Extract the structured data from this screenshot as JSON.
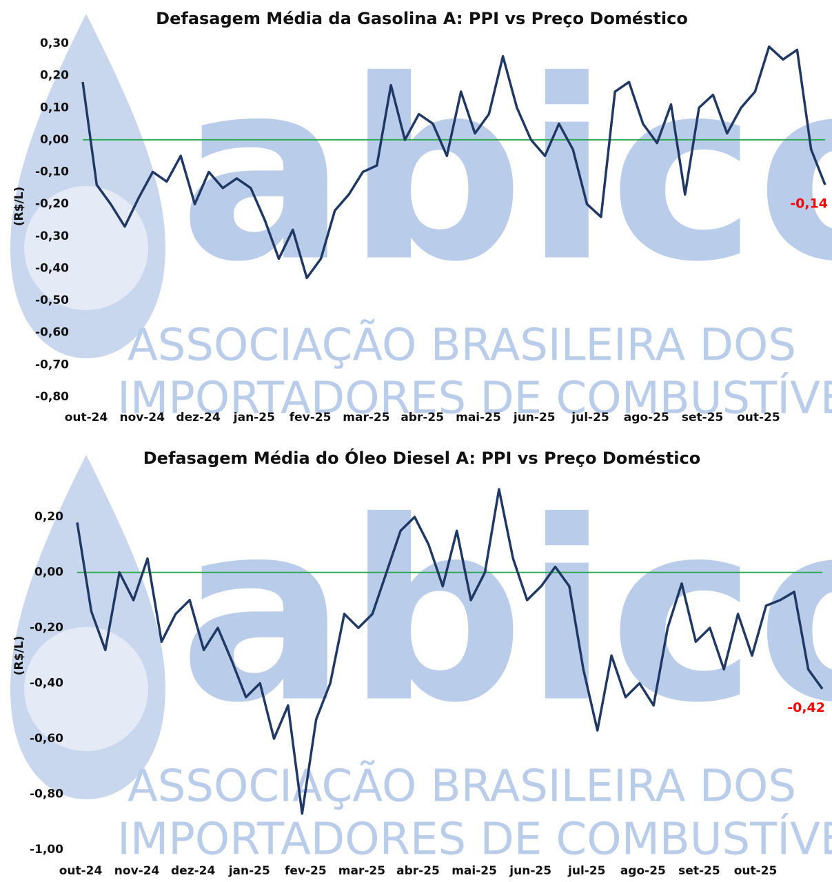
{
  "watermark": {
    "logo": "abicom",
    "line1": "ASSOCIAÇÃO BRASILEIRA DOS",
    "line2": "IMPORTADORES DE COMBUSTÍVEIS"
  },
  "chart_data": [
    {
      "type": "line",
      "title": "Defasagem Média da Gasolina A: PPI vs Preço Doméstico",
      "y_label": "(R$/L)",
      "categories": [
        "out-24",
        null,
        null,
        null,
        "nov-24",
        null,
        null,
        null,
        "dez-24",
        null,
        null,
        null,
        "jan-25",
        null,
        null,
        null,
        "fev-25",
        null,
        null,
        null,
        "mar-25",
        null,
        null,
        null,
        "abr-25",
        null,
        null,
        null,
        "mai-25",
        null,
        null,
        null,
        "jun-25",
        null,
        null,
        null,
        "jul-25",
        null,
        null,
        null,
        "ago-25",
        null,
        null,
        null,
        "set-25",
        null,
        null,
        null,
        "out-25",
        null,
        null,
        null,
        null,
        null
      ],
      "series": [
        {
          "name": "Defasagem",
          "color": "#1f3864",
          "values": [
            0.18,
            -0.14,
            -0.2,
            -0.27,
            -0.18,
            -0.1,
            -0.13,
            -0.05,
            -0.2,
            -0.1,
            -0.15,
            -0.12,
            -0.15,
            -0.25,
            -0.37,
            -0.28,
            -0.43,
            -0.37,
            -0.22,
            -0.17,
            -0.1,
            -0.08,
            0.17,
            0.0,
            0.08,
            0.05,
            -0.05,
            0.15,
            0.02,
            0.08,
            0.26,
            0.1,
            0.0,
            -0.05,
            0.05,
            -0.03,
            -0.2,
            -0.24,
            0.15,
            0.18,
            0.05,
            -0.01,
            0.11,
            -0.17,
            0.1,
            0.14,
            0.02,
            0.1,
            0.15,
            0.29,
            0.25,
            0.28,
            -0.03,
            -0.14
          ],
          "value_labels": [
            null,
            null,
            null,
            null,
            null,
            null,
            null,
            null,
            null,
            null,
            null,
            null,
            null,
            null,
            null,
            null,
            null,
            null,
            null,
            null,
            null,
            null,
            null,
            null,
            null,
            null,
            null,
            null,
            null,
            null,
            null,
            null,
            null,
            null,
            null,
            null,
            null,
            null,
            null,
            null,
            null,
            null,
            null,
            null,
            null,
            null,
            null,
            null,
            null,
            null,
            null,
            null,
            null,
            "-0,14"
          ]
        }
      ],
      "value_label_color": "#ff0000",
      "zero_line_color": "#2eaa57",
      "ylim": [
        -0.8,
        0.3
      ],
      "yticks": [
        {
          "value": -0.8,
          "label": "-0,80"
        },
        {
          "value": -0.7,
          "label": "-0,70"
        },
        {
          "value": -0.6,
          "label": "-0,60"
        },
        {
          "value": -0.5,
          "label": "-0,50"
        },
        {
          "value": -0.4,
          "label": "-0,40"
        },
        {
          "value": -0.3,
          "label": "-0,30"
        },
        {
          "value": -0.2,
          "label": "-0,20"
        },
        {
          "value": -0.1,
          "label": "-0,10"
        },
        {
          "value": 0,
          "label": "0,00"
        },
        {
          "value": 0.1,
          "label": "0,10"
        },
        {
          "value": 0.2,
          "label": "0,20"
        },
        {
          "value": 0.3,
          "label": "0,30"
        }
      ]
    },
    {
      "type": "line",
      "title": "Defasagem Média do Óleo Diesel A: PPI vs Preço Doméstico",
      "y_label": "(R$/L)",
      "categories": [
        "out-24",
        null,
        null,
        null,
        "nov-24",
        null,
        null,
        null,
        "dez-24",
        null,
        null,
        null,
        "jan-25",
        null,
        null,
        null,
        "fev-25",
        null,
        null,
        null,
        "mar-25",
        null,
        null,
        null,
        "abr-25",
        null,
        null,
        null,
        "mai-25",
        null,
        null,
        null,
        "jun-25",
        null,
        null,
        null,
        "jul-25",
        null,
        null,
        null,
        "ago-25",
        null,
        null,
        null,
        "set-25",
        null,
        null,
        null,
        "out-25",
        null,
        null,
        null,
        null,
        null
      ],
      "series": [
        {
          "name": "Defasagem",
          "color": "#1f3864",
          "values": [
            0.18,
            -0.14,
            -0.28,
            0.0,
            -0.1,
            0.05,
            -0.25,
            -0.15,
            -0.1,
            -0.28,
            -0.2,
            -0.32,
            -0.45,
            -0.4,
            -0.6,
            -0.48,
            -0.87,
            -0.53,
            -0.4,
            -0.15,
            -0.2,
            -0.15,
            0.0,
            0.15,
            0.2,
            0.1,
            -0.05,
            0.15,
            -0.1,
            0.0,
            0.3,
            0.05,
            -0.1,
            -0.05,
            0.02,
            -0.05,
            -0.35,
            -0.57,
            -0.3,
            -0.45,
            -0.4,
            -0.48,
            -0.2,
            -0.04,
            -0.25,
            -0.2,
            -0.35,
            -0.15,
            -0.3,
            -0.12,
            -0.1,
            -0.07,
            -0.35,
            -0.42
          ],
          "value_labels": [
            null,
            null,
            null,
            null,
            null,
            null,
            null,
            null,
            null,
            null,
            null,
            null,
            null,
            null,
            null,
            null,
            null,
            null,
            null,
            null,
            null,
            null,
            null,
            null,
            null,
            null,
            null,
            null,
            null,
            null,
            null,
            null,
            null,
            null,
            null,
            null,
            null,
            null,
            null,
            null,
            null,
            null,
            null,
            null,
            null,
            null,
            null,
            null,
            null,
            null,
            null,
            null,
            null,
            "-0,42"
          ]
        }
      ],
      "value_label_color": "#ff0000",
      "zero_line_color": "#2eaa57",
      "ylim": [
        -1.0,
        0.3
      ],
      "yticks": [
        {
          "value": -1.0,
          "label": "-1,00"
        },
        {
          "value": -0.8,
          "label": "-0,80"
        },
        {
          "value": -0.6,
          "label": "-0,60"
        },
        {
          "value": -0.4,
          "label": "-0,40"
        },
        {
          "value": -0.2,
          "label": "-0,20"
        },
        {
          "value": 0,
          "label": "0,00"
        },
        {
          "value": 0.2,
          "label": "0,20"
        }
      ]
    }
  ]
}
